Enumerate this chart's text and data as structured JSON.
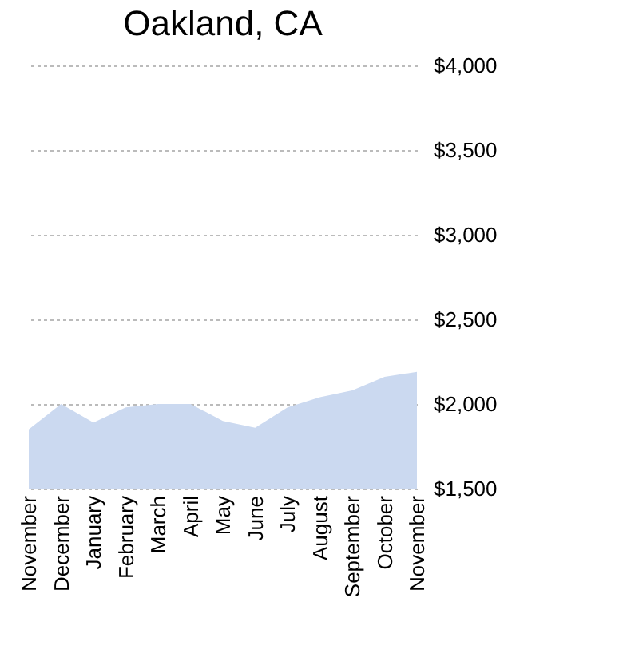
{
  "chart_data": {
    "type": "area",
    "title": "Oakland, CA",
    "categories": [
      "November",
      "December",
      "January",
      "February",
      "March",
      "April",
      "May",
      "June",
      "July",
      "August",
      "September",
      "October",
      "November"
    ],
    "series": [
      {
        "color": "#cbd9f0",
        "values": [
          1850,
          2000,
          1890,
          1980,
          2000,
          2000,
          1900,
          1860,
          1980,
          2040,
          2080,
          2160,
          2190
        ]
      }
    ],
    "ylim": [
      1500,
      4000
    ],
    "yticks": [
      {
        "value": 1500,
        "label": "$1,500"
      },
      {
        "value": 2000,
        "label": "$2,000"
      },
      {
        "value": 2500,
        "label": "$2,500"
      },
      {
        "value": 3000,
        "label": "$3,000"
      },
      {
        "value": 3500,
        "label": "$3,500"
      },
      {
        "value": 4000,
        "label": "$4,000"
      }
    ],
    "grid": "y"
  }
}
